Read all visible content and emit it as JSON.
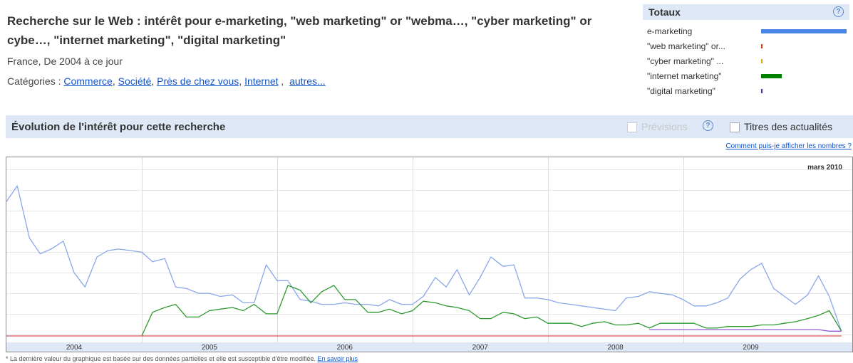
{
  "header": {
    "title": "Recherche sur le Web : intérêt pour e-marketing, \"web marketing\" or \"webma…, \"cyber marketing\" or cybe…, \"internet marketing\", \"digital marketing\"",
    "region_period": "France, De 2004 à ce jour",
    "categories_label": "Catégories : ",
    "categories": [
      "Commerce",
      "Société",
      "Près de chez vous",
      "Internet"
    ],
    "more_link": "autres..."
  },
  "totals": {
    "title": "Totaux",
    "help": "?",
    "items": [
      {
        "label": "e-marketing",
        "value": 1.0,
        "color": "#4a86e8"
      },
      {
        "label": "\"web marketing\" or...",
        "value": 0.01,
        "color": "#cc3300"
      },
      {
        "label": "\"cyber marketing\" ...",
        "value": 0.01,
        "color": "#e6a100"
      },
      {
        "label": "\"internet marketing\"",
        "value": 0.24,
        "color": "#008000"
      },
      {
        "label": "\"digital marketing\"",
        "value": 0.01,
        "color": "#3333aa"
      }
    ]
  },
  "section": {
    "title": "Évolution de l'intérêt pour cette recherche",
    "forecast_label": "Prévisions",
    "news_label": "Titres des actualités",
    "help": "?"
  },
  "how_link": "Comment puis-je afficher les nombres ?",
  "footnote": {
    "text": "* La dernière valeur du graphique est basée sur des données partielles et elle est susceptible d'être modifiée. ",
    "link": "En savoir plus"
  },
  "chart_data": {
    "type": "line",
    "date_label": "mars 2010",
    "x_ticks": [
      "2004",
      "2005",
      "2006",
      "2007",
      "2008",
      "2009"
    ],
    "x_range": [
      2004.0,
      2010.25
    ],
    "ylim": [
      0,
      100
    ],
    "grid": true,
    "series": [
      {
        "name": "e-marketing",
        "color": "#8aa7ea",
        "x": [
          2004.0,
          2004.08,
          2004.17,
          2004.25,
          2004.33,
          2004.42,
          2004.5,
          2004.58,
          2004.67,
          2004.75,
          2004.83,
          2004.92,
          2005.0,
          2005.08,
          2005.17,
          2005.25,
          2005.33,
          2005.42,
          2005.5,
          2005.58,
          2005.67,
          2005.75,
          2005.83,
          2005.92,
          2006.0,
          2006.08,
          2006.17,
          2006.25,
          2006.33,
          2006.42,
          2006.5,
          2006.58,
          2006.67,
          2006.75,
          2006.83,
          2006.92,
          2007.0,
          2007.08,
          2007.17,
          2007.25,
          2007.33,
          2007.42,
          2007.5,
          2007.58,
          2007.67,
          2007.75,
          2007.83,
          2007.92,
          2008.0,
          2008.08,
          2008.17,
          2008.25,
          2008.33,
          2008.42,
          2008.5,
          2008.58,
          2008.67,
          2008.75,
          2008.83,
          2008.92,
          2009.0,
          2009.08,
          2009.17,
          2009.25,
          2009.33,
          2009.42,
          2009.5,
          2009.58,
          2009.67,
          2009.75,
          2009.83,
          2009.92,
          2010.0,
          2010.08,
          2010.17
        ],
        "values": [
          85,
          95,
          62,
          52,
          55,
          60,
          40,
          31,
          50,
          54,
          55,
          54,
          53,
          47,
          49,
          31,
          30,
          27,
          27,
          25,
          26,
          21,
          21,
          45,
          35,
          35,
          23,
          22,
          20,
          20,
          21,
          20,
          20,
          19,
          23,
          20,
          20,
          25,
          37,
          31,
          42,
          26,
          37,
          50,
          44,
          45,
          24,
          24,
          23,
          21,
          20,
          19,
          18,
          17,
          16,
          24,
          25,
          28,
          27,
          26,
          23,
          19,
          19,
          21,
          24,
          36,
          42,
          46,
          30,
          25,
          20,
          26,
          38,
          25,
          3
        ]
      },
      {
        "name": "\"internet marketing\"",
        "color": "#2e9a2e",
        "x": [
          2005.0,
          2005.08,
          2005.17,
          2005.25,
          2005.33,
          2005.42,
          2005.5,
          2005.58,
          2005.67,
          2005.75,
          2005.83,
          2005.92,
          2006.0,
          2006.08,
          2006.17,
          2006.25,
          2006.33,
          2006.42,
          2006.5,
          2006.58,
          2006.67,
          2006.75,
          2006.83,
          2006.92,
          2007.0,
          2007.08,
          2007.17,
          2007.25,
          2007.33,
          2007.42,
          2007.5,
          2007.58,
          2007.67,
          2007.75,
          2007.83,
          2007.92,
          2008.0,
          2008.08,
          2008.17,
          2008.25,
          2008.33,
          2008.42,
          2008.5,
          2008.58,
          2008.67,
          2008.75,
          2008.83,
          2008.92,
          2009.0,
          2009.08,
          2009.17,
          2009.25,
          2009.33,
          2009.42,
          2009.5,
          2009.58,
          2009.67,
          2009.75,
          2009.83,
          2009.92,
          2010.0,
          2010.08,
          2010.17
        ],
        "values": [
          0,
          15,
          18,
          20,
          12,
          12,
          16,
          17,
          18,
          16,
          20,
          14,
          14,
          32,
          29,
          21,
          28,
          32,
          23,
          23,
          15,
          15,
          17,
          14,
          16,
          22,
          21,
          19,
          18,
          16,
          11,
          11,
          15,
          14,
          11,
          12,
          8,
          8,
          8,
          6,
          8,
          9,
          7,
          7,
          8,
          5,
          8,
          8,
          8,
          8,
          5,
          5,
          6,
          6,
          6,
          7,
          7,
          8,
          9,
          11,
          13,
          16,
          3
        ]
      },
      {
        "name": "\"digital marketing\"",
        "color": "#8e5ad6",
        "x": [
          2008.75,
          2008.83,
          2008.92,
          2009.0,
          2009.08,
          2009.17,
          2009.25,
          2009.33,
          2009.42,
          2009.5,
          2009.58,
          2009.67,
          2009.75,
          2009.83,
          2009.92,
          2010.0,
          2010.08,
          2010.17
        ],
        "values": [
          4,
          4,
          4,
          4,
          4,
          4,
          4,
          4,
          4,
          4,
          4,
          4,
          4,
          4,
          4,
          4,
          3,
          3
        ]
      },
      {
        "name": "\"web marketing\" or...",
        "color": "#e05050",
        "x": [
          2004.0,
          2010.17
        ],
        "values": [
          0,
          0
        ]
      }
    ]
  }
}
